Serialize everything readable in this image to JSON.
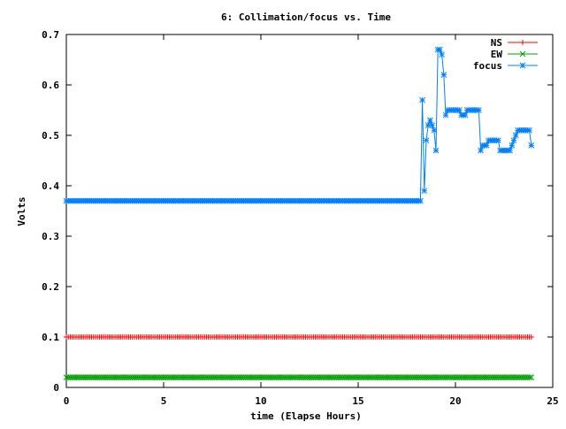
{
  "chart_data": {
    "type": "line",
    "title": "6: Collimation/focus vs. Time",
    "xlabel": "time (Elapse Hours)",
    "ylabel": "Volts",
    "xlim": [
      0,
      25
    ],
    "ylim": [
      0,
      0.7
    ],
    "x_ticks": [
      0,
      5,
      10,
      15,
      20,
      25
    ],
    "x_tick_labels": [
      "0",
      "5",
      "10",
      "15",
      "20",
      "25"
    ],
    "y_ticks": [
      0,
      0.1,
      0.2,
      0.3,
      0.4,
      0.5,
      0.6,
      0.7
    ],
    "y_tick_labels": [
      "0",
      "0.1",
      "0.2",
      "0.3",
      "0.4",
      "0.5",
      "0.6",
      "0.7"
    ],
    "grid": false,
    "legend_position": "top-right",
    "series": [
      {
        "name": "NS",
        "color": "#ff0000",
        "marker": "plus",
        "x_start": 0,
        "x_end": 23.9,
        "x_step": 0.1,
        "value": 0.1
      },
      {
        "name": "EW",
        "color": "#00a000",
        "marker": "cross",
        "x_start": 0,
        "x_end": 23.9,
        "x_step": 0.1,
        "value": 0.02
      },
      {
        "name": "focus",
        "color": "#0080ff",
        "marker": "star",
        "x_start": 0,
        "x_step": 0.1,
        "constant_until": 18.2,
        "constant_value": 0.37,
        "points": [
          [
            18.3,
            0.57
          ],
          [
            18.4,
            0.39
          ],
          [
            18.5,
            0.49
          ],
          [
            18.6,
            0.52
          ],
          [
            18.7,
            0.53
          ],
          [
            18.8,
            0.52
          ],
          [
            18.9,
            0.51
          ],
          [
            19.0,
            0.47
          ],
          [
            19.1,
            0.67
          ],
          [
            19.2,
            0.67
          ],
          [
            19.3,
            0.66
          ],
          [
            19.4,
            0.62
          ],
          [
            19.5,
            0.54
          ],
          [
            19.6,
            0.55
          ],
          [
            19.7,
            0.55
          ],
          [
            19.8,
            0.55
          ],
          [
            19.9,
            0.55
          ],
          [
            20.0,
            0.55
          ],
          [
            20.1,
            0.55
          ],
          [
            20.2,
            0.55
          ],
          [
            20.3,
            0.54
          ],
          [
            20.4,
            0.54
          ],
          [
            20.5,
            0.54
          ],
          [
            20.6,
            0.55
          ],
          [
            20.7,
            0.55
          ],
          [
            20.8,
            0.55
          ],
          [
            20.9,
            0.55
          ],
          [
            21.0,
            0.55
          ],
          [
            21.1,
            0.55
          ],
          [
            21.2,
            0.55
          ],
          [
            21.3,
            0.47
          ],
          [
            21.4,
            0.48
          ],
          [
            21.5,
            0.48
          ],
          [
            21.6,
            0.48
          ],
          [
            21.7,
            0.49
          ],
          [
            21.8,
            0.49
          ],
          [
            21.9,
            0.49
          ],
          [
            22.0,
            0.49
          ],
          [
            22.1,
            0.49
          ],
          [
            22.2,
            0.49
          ],
          [
            22.3,
            0.47
          ],
          [
            22.4,
            0.47
          ],
          [
            22.5,
            0.47
          ],
          [
            22.6,
            0.47
          ],
          [
            22.7,
            0.47
          ],
          [
            22.8,
            0.47
          ],
          [
            22.9,
            0.48
          ],
          [
            23.0,
            0.49
          ],
          [
            23.1,
            0.5
          ],
          [
            23.2,
            0.51
          ],
          [
            23.3,
            0.51
          ],
          [
            23.4,
            0.51
          ],
          [
            23.5,
            0.51
          ],
          [
            23.6,
            0.51
          ],
          [
            23.7,
            0.51
          ],
          [
            23.8,
            0.51
          ],
          [
            23.9,
            0.48
          ]
        ]
      }
    ]
  }
}
